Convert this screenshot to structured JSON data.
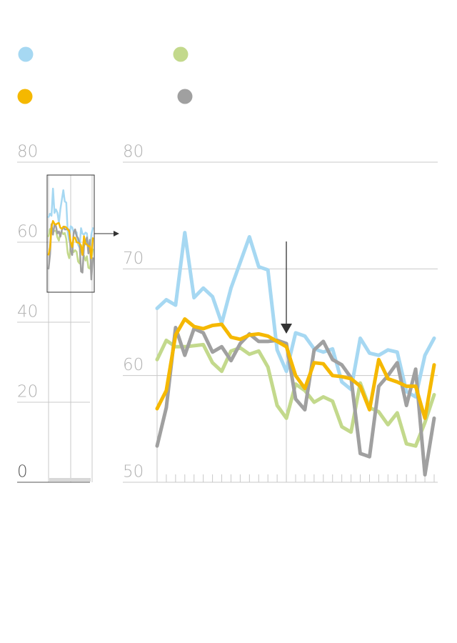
{
  "chart_data": [
    {
      "type": "line",
      "ylim": [
        0,
        80
      ],
      "yticks": [
        0,
        20,
        40,
        60,
        80
      ],
      "grid": true,
      "series": [
        {
          "color": "#a6d8f2",
          "values": [
            66.3,
            67.1,
            66.6,
            73.4,
            67.3,
            68.2,
            67.4,
            64.9,
            68.2,
            70.6,
            73.0,
            70.2,
            69.9,
            62.4,
            60.4,
            64.0,
            63.7,
            62.5,
            62.2,
            62.5,
            59.4,
            58.7,
            63.5,
            62.1,
            61.9,
            62.4,
            62.2,
            58.5,
            58.0,
            61.9,
            63.5
          ]
        },
        {
          "color": "#c3d98c",
          "values": [
            61.5,
            63.3,
            62.7,
            62.7,
            62.8,
            62.9,
            61.2,
            60.4,
            62.3,
            62.6,
            62.0,
            62.3,
            60.8,
            57.2,
            56.0,
            59.2,
            58.6,
            57.5,
            58.0,
            57.6,
            55.2,
            54.7,
            59.3,
            57.0,
            56.6,
            55.4,
            56.5,
            53.6,
            53.4,
            55.6,
            58.2
          ]
        },
        {
          "color": "#a0a0a0",
          "values": [
            53.4,
            57.0,
            64.5,
            61.9,
            64.4,
            64.0,
            62.2,
            62.7,
            61.4,
            63.0,
            63.9,
            63.2,
            63.2,
            63.3,
            63.0,
            57.8,
            56.8,
            62.4,
            63.2,
            61.5,
            61.0,
            59.8,
            52.7,
            52.4,
            59.0,
            60.0,
            61.2,
            57.2,
            60.6,
            50.7,
            56.0
          ]
        },
        {
          "color": "#f5b800",
          "values": [
            56.9,
            58.6,
            63.8,
            65.3,
            64.6,
            64.4,
            64.7,
            64.8,
            63.6,
            63.4,
            63.8,
            63.9,
            63.7,
            63.2,
            62.7,
            60.0,
            58.8,
            61.2,
            61.1,
            60.0,
            59.9,
            59.7,
            59.0,
            56.8,
            61.5,
            59.7,
            59.4,
            59.0,
            59.0,
            56.0,
            61.0
          ]
        }
      ]
    },
    {
      "type": "line",
      "ylim": [
        50,
        80
      ],
      "yticks": [
        50,
        60,
        70,
        80
      ],
      "grid": true,
      "series": [
        {
          "color": "#a6d8f2",
          "values": [
            66.3,
            67.1,
            66.6,
            73.4,
            67.3,
            68.2,
            67.4,
            64.9,
            68.2,
            70.6,
            73.0,
            70.2,
            69.9,
            62.4,
            60.4,
            64.0,
            63.7,
            62.5,
            62.2,
            62.5,
            59.4,
            58.7,
            63.5,
            62.1,
            61.9,
            62.4,
            62.2,
            58.5,
            58.0,
            61.9,
            63.5
          ]
        },
        {
          "color": "#c3d98c",
          "values": [
            61.5,
            63.3,
            62.7,
            62.7,
            62.8,
            62.9,
            61.2,
            60.4,
            62.3,
            62.6,
            62.0,
            62.3,
            60.8,
            57.2,
            56.0,
            59.2,
            58.6,
            57.5,
            58.0,
            57.6,
            55.2,
            54.7,
            59.3,
            57.0,
            56.6,
            55.4,
            56.5,
            53.6,
            53.4,
            55.6,
            58.2
          ]
        },
        {
          "color": "#a0a0a0",
          "values": [
            53.4,
            57.0,
            64.5,
            61.9,
            64.4,
            64.0,
            62.2,
            62.7,
            61.4,
            63.0,
            63.9,
            63.2,
            63.2,
            63.3,
            63.0,
            57.8,
            56.8,
            62.4,
            63.2,
            61.5,
            61.0,
            59.8,
            52.7,
            52.4,
            59.0,
            60.0,
            61.2,
            57.2,
            60.6,
            50.7,
            56.0
          ]
        },
        {
          "color": "#f5b800",
          "values": [
            56.9,
            58.6,
            63.8,
            65.3,
            64.6,
            64.4,
            64.7,
            64.8,
            63.6,
            63.4,
            63.8,
            63.9,
            63.7,
            63.2,
            62.7,
            60.0,
            58.8,
            61.2,
            61.1,
            60.0,
            59.9,
            59.7,
            59.0,
            56.8,
            61.5,
            59.7,
            59.4,
            59.0,
            59.0,
            56.0,
            61.0
          ]
        }
      ]
    }
  ]
}
